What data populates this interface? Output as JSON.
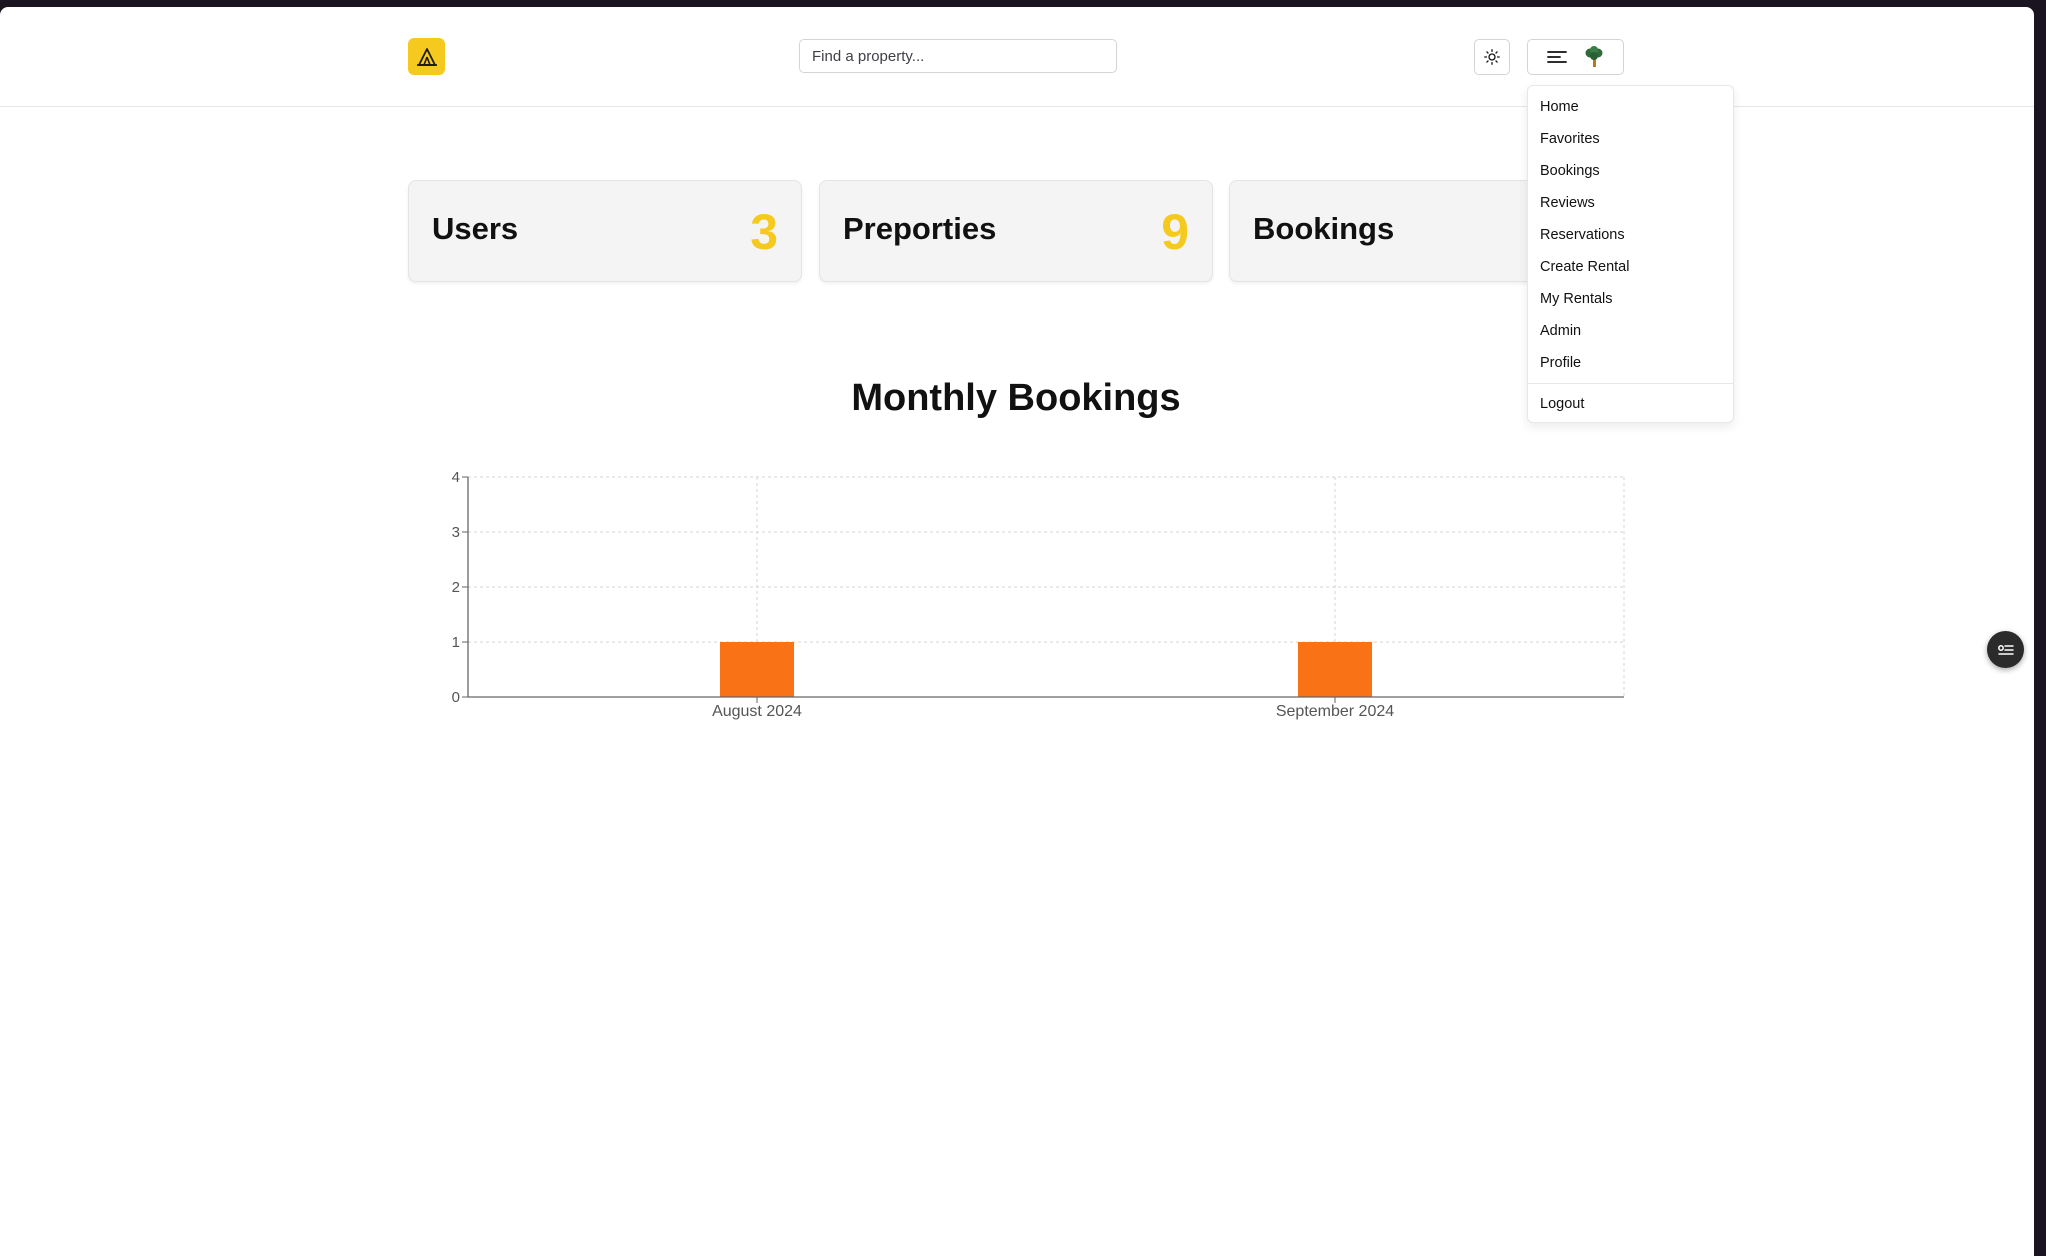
{
  "header": {
    "search_placeholder": "Find a property...",
    "logo_icon": "tent-icon",
    "theme_icon": "sun-icon",
    "menu_icon": "menu-lines-icon",
    "avatar_icon": "tree-avatar-icon"
  },
  "menu": {
    "items": [
      "Home",
      "Favorites",
      "Bookings",
      "Reviews",
      "Reservations",
      "Create Rental",
      "My Rentals",
      "Admin",
      "Profile"
    ],
    "logout": "Logout"
  },
  "stats": [
    {
      "label": "Users",
      "value": "3"
    },
    {
      "label": "Preporties",
      "value": "9"
    },
    {
      "label": "Bookings",
      "value": ""
    }
  ],
  "colors": {
    "accent": "#f6c91e",
    "bar": "#f97316"
  },
  "chart_data": {
    "type": "bar",
    "title": "Monthly Bookings",
    "categories": [
      "August 2024",
      "September 2024"
    ],
    "values": [
      1,
      1
    ],
    "ylim": [
      0,
      4
    ],
    "yticks": [
      0,
      1,
      2,
      3,
      4
    ],
    "grid": true
  }
}
